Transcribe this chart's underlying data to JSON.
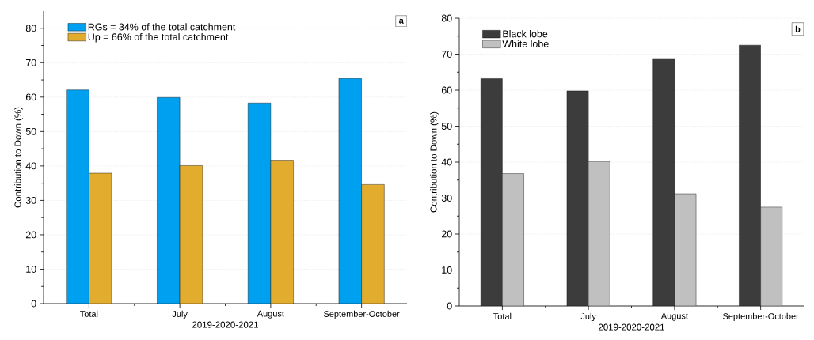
{
  "chart_data": [
    {
      "type": "bar",
      "categories": [
        "Total",
        "July",
        "August",
        "September-October"
      ],
      "xlabel": "2019-2020-2021",
      "ylabel": "Contribution to Down (%)",
      "ylim": [
        0,
        85
      ],
      "yticks": [
        0,
        10,
        20,
        30,
        40,
        50,
        60,
        70,
        80
      ],
      "grid": "y",
      "legend": "top left",
      "annotations": [
        "a"
      ],
      "series": [
        {
          "name": "RGs = 34% of the total catchment",
          "color": "#00a0f0",
          "values": [
            62.1,
            59.9,
            58.3,
            65.4
          ]
        },
        {
          "name": "Up = 66% of the total catchment",
          "color": "#e2ac2e",
          "values": [
            37.9,
            40.1,
            41.7,
            34.6
          ]
        }
      ]
    },
    {
      "type": "bar",
      "categories": [
        "Total",
        "July",
        "August",
        "September-October"
      ],
      "xlabel": "2019-2020-2021",
      "ylabel": "Contribution to Down (%)",
      "ylim": [
        0,
        80
      ],
      "yticks": [
        0,
        10,
        20,
        30,
        40,
        50,
        60,
        70,
        80
      ],
      "grid": "y",
      "legend": "top left",
      "annotations": [
        "b"
      ],
      "series": [
        {
          "name": "Black lobe",
          "color": "#3c3c3c",
          "values": [
            63.2,
            59.8,
            68.8,
            72.5
          ]
        },
        {
          "name": "White lobe",
          "color": "#c0c0c0",
          "values": [
            36.8,
            40.2,
            31.2,
            27.5
          ]
        }
      ]
    }
  ]
}
